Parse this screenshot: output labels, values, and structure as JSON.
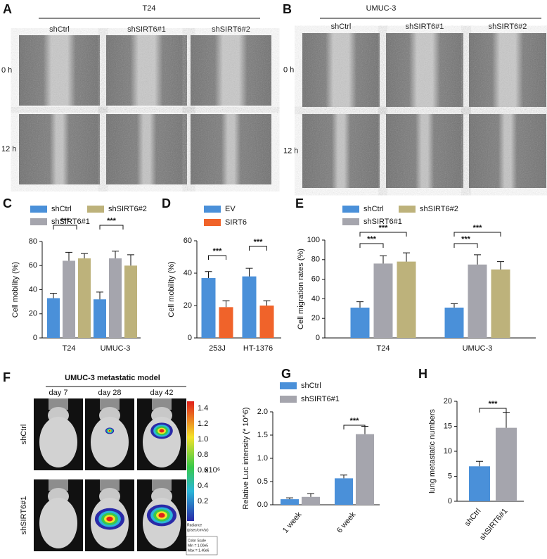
{
  "panels": {
    "A": {
      "label": "A",
      "title": "T24",
      "columns": [
        "shCtrl",
        "shSIRT6#1",
        "shSIRT6#2"
      ],
      "rows": [
        "0 h",
        "12 h"
      ]
    },
    "B": {
      "label": "B",
      "title": "UMUC-3",
      "columns": [
        "shCtrl",
        "shSIRT6#1",
        "shSIRT6#2"
      ],
      "rows": [
        "0 h",
        "12 h"
      ]
    },
    "F": {
      "label": "F",
      "title": "UMUC-3 metastatic model",
      "columns": [
        "day 7",
        "day 28",
        "day 42"
      ],
      "rows": [
        "shCtrl",
        "shSIRT6#1"
      ],
      "colorbar": {
        "ticks": [
          "1.4",
          "1.2",
          "1.0",
          "0.8",
          "0.6",
          "0.4",
          "0.2"
        ],
        "unit": "x10⁶",
        "radiance": [
          "Radiance",
          "(p/sec/cm²/sr)"
        ],
        "scale": [
          "Color Scale",
          "Min = 1.00e5",
          "Max = 1.40e6"
        ]
      }
    }
  },
  "chart_data": [
    {
      "type": "bar",
      "label": "C",
      "ylabel": "Cell mobility (%)",
      "categories": [
        "T24",
        "UMUC-3"
      ],
      "series": [
        {
          "name": "shCtrl",
          "color": "#4a90d9",
          "values": [
            33,
            32
          ],
          "errors": [
            4,
            6
          ]
        },
        {
          "name": "shSIRT6#1",
          "color": "#a5a5ad",
          "values": [
            64,
            66
          ],
          "errors": [
            7,
            6
          ]
        },
        {
          "name": "shSIRT6#2",
          "color": "#bdb27b",
          "values": [
            66,
            60
          ],
          "errors": [
            4,
            9
          ]
        }
      ],
      "ylim": [
        0,
        80
      ],
      "yticks": [
        0,
        20,
        40,
        60,
        80
      ],
      "annotations": [
        "***",
        "***"
      ]
    },
    {
      "type": "bar",
      "label": "D",
      "ylabel": "Cell mobility (%)",
      "categories": [
        "253J",
        "HT-1376"
      ],
      "series": [
        {
          "name": "EV",
          "color": "#4a90d9",
          "values": [
            37,
            38
          ],
          "errors": [
            4,
            5
          ]
        },
        {
          "name": "SIRT6",
          "color": "#f0632a",
          "values": [
            19,
            20
          ],
          "errors": [
            4,
            3
          ]
        }
      ],
      "ylim": [
        0,
        60
      ],
      "yticks": [
        0,
        20,
        40,
        60
      ],
      "annotations": [
        "***",
        "***"
      ]
    },
    {
      "type": "bar",
      "label": "E",
      "ylabel": "Cell migration rates (%)",
      "categories": [
        "T24",
        "UMUC-3"
      ],
      "series": [
        {
          "name": "shCtrl",
          "color": "#4a90d9",
          "values": [
            31,
            31
          ],
          "errors": [
            6,
            4
          ]
        },
        {
          "name": "shSIRT6#1",
          "color": "#a5a5ad",
          "values": [
            76,
            75
          ],
          "errors": [
            8,
            10
          ]
        },
        {
          "name": "shSIRT6#2",
          "color": "#bdb27b",
          "values": [
            78,
            70
          ],
          "errors": [
            9,
            8
          ]
        }
      ],
      "ylim": [
        0,
        100
      ],
      "yticks": [
        0,
        20,
        40,
        60,
        80,
        100
      ],
      "annotations": [
        "***",
        "***",
        "***",
        "***"
      ]
    },
    {
      "type": "bar",
      "label": "G",
      "ylabel": "Relative Luc intensity (* 10^6)",
      "categories": [
        "1 week",
        "6 week"
      ],
      "series": [
        {
          "name": "shCtrl",
          "color": "#4a90d9",
          "values": [
            0.12,
            0.57
          ],
          "errors": [
            0.03,
            0.07
          ]
        },
        {
          "name": "shSIRT6#1",
          "color": "#a5a5ad",
          "values": [
            0.17,
            1.52
          ],
          "errors": [
            0.07,
            0.17
          ]
        }
      ],
      "ylim": [
        0,
        2
      ],
      "yticks": [
        {
          "value": 0,
          "label": "0.0"
        },
        0.5,
        {
          "value": 1,
          "label": "1.0"
        },
        1.5,
        {
          "value": 2,
          "label": "2.0"
        }
      ],
      "annotations": [
        "***"
      ]
    },
    {
      "type": "bar",
      "label": "H",
      "ylabel": "lung metastatic numbers",
      "categories": [
        "shCtrl",
        "shSIRT6#1"
      ],
      "values": [
        7,
        14.7
      ],
      "errors": [
        1,
        3.1
      ],
      "colors": [
        "#4a90d9",
        "#a5a5ad"
      ],
      "ylim": [
        0,
        20
      ],
      "yticks": [
        0,
        5,
        10,
        15,
        20
      ],
      "annotations": [
        "***"
      ]
    }
  ]
}
